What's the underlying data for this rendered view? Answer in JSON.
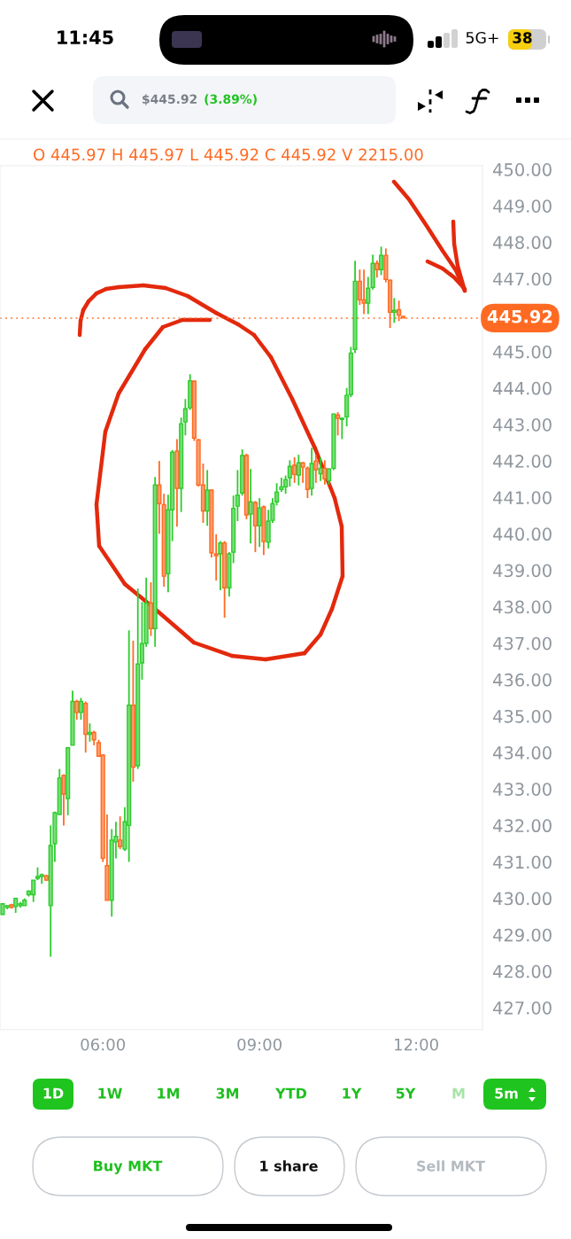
{
  "chart_data": {
    "type": "candlestick",
    "title": "$445.92",
    "subtitle": "O 445.97 H 445.97 L 445.92 C 445.92 V 2215.00",
    "x": [
      4.08,
      4.17,
      4.25,
      4.33,
      4.42,
      4.5,
      4.58,
      4.67,
      4.75,
      4.83,
      4.92,
      5.0,
      5.08,
      5.17,
      5.25,
      5.33,
      5.42,
      5.5,
      5.58,
      5.67,
      5.75,
      5.83,
      5.92,
      6.0,
      6.08,
      6.17,
      6.25,
      6.33,
      6.42,
      6.5,
      6.58,
      6.67,
      6.75,
      6.83,
      6.92,
      7.0,
      7.08,
      7.17,
      7.25,
      7.33,
      7.42,
      7.5,
      7.58,
      7.67,
      7.75,
      7.83,
      7.92,
      8.0,
      8.08,
      8.17,
      8.25,
      8.33,
      8.42,
      8.5,
      8.58,
      8.67,
      8.75,
      8.83,
      8.92,
      9.0,
      9.08,
      9.17,
      9.25,
      9.33,
      9.42,
      9.5,
      9.58,
      9.67,
      9.75,
      9.83,
      9.92,
      10.0,
      10.08,
      10.17,
      10.25,
      10.33,
      10.42,
      10.5,
      10.58,
      10.67,
      10.75,
      10.83,
      10.92,
      11.0,
      11.08,
      11.17,
      11.25,
      11.33,
      11.42,
      11.5,
      11.58,
      11.67,
      11.75
    ],
    "ohlc": [
      [
        429.56,
        429.87,
        429.55,
        429.85
      ],
      [
        429.75,
        429.82,
        429.7,
        429.8
      ],
      [
        429.82,
        429.85,
        429.72,
        429.75
      ],
      [
        429.78,
        430.02,
        429.6,
        430.0
      ],
      [
        429.8,
        429.9,
        429.75,
        429.85
      ],
      [
        429.8,
        430.0,
        429.8,
        429.95
      ],
      [
        430.1,
        430.22,
        430.05,
        430.2
      ],
      [
        430.1,
        430.5,
        429.9,
        430.5
      ],
      [
        430.55,
        430.85,
        430.5,
        430.6
      ],
      [
        430.6,
        430.68,
        430.4,
        430.65
      ],
      [
        430.62,
        430.65,
        430.48,
        430.5
      ],
      [
        429.8,
        432.0,
        428.4,
        431.45
      ],
      [
        431.5,
        432.38,
        431.0,
        432.35
      ],
      [
        432.3,
        433.55,
        432.3,
        433.3
      ],
      [
        433.37,
        433.4,
        432.0,
        432.86
      ],
      [
        432.74,
        434.15,
        432.28,
        434.13
      ],
      [
        434.2,
        435.7,
        434.2,
        435.4
      ],
      [
        435.4,
        435.45,
        434.9,
        435.1
      ],
      [
        435.1,
        435.5,
        434.9,
        435.4
      ],
      [
        435.35,
        435.4,
        434.0,
        434.5
      ],
      [
        434.5,
        434.8,
        434.3,
        434.55
      ],
      [
        434.55,
        434.6,
        434.2,
        434.35
      ],
      [
        434.27,
        434.35,
        433.88,
        433.9
      ],
      [
        433.93,
        433.95,
        431.0,
        431.1
      ],
      [
        430.9,
        432.3,
        429.95,
        429.95
      ],
      [
        429.95,
        431.9,
        429.5,
        431.6
      ],
      [
        431.55,
        432.1,
        431.1,
        431.7
      ],
      [
        431.6,
        432.25,
        431.35,
        431.42
      ],
      [
        431.35,
        432.5,
        431.3,
        432.1
      ],
      [
        432.0,
        437.35,
        431.0,
        435.3
      ],
      [
        435.3,
        437.07,
        433.2,
        433.6
      ],
      [
        433.64,
        438.5,
        433.55,
        436.43
      ],
      [
        436.46,
        438.13,
        436.0,
        436.99
      ],
      [
        437.0,
        438.8,
        436.9,
        438.1
      ],
      [
        438.1,
        438.67,
        437.2,
        437.4
      ],
      [
        437.4,
        441.56,
        436.9,
        441.34
      ],
      [
        441.34,
        442.0,
        440.0,
        440.83
      ],
      [
        440.8,
        441.1,
        438.55,
        438.84
      ],
      [
        438.91,
        441.07,
        438.4,
        440.66
      ],
      [
        440.66,
        442.3,
        439.8,
        442.24
      ],
      [
        442.27,
        442.6,
        440.2,
        441.25
      ],
      [
        441.25,
        443.19,
        440.6,
        443.02
      ],
      [
        443.07,
        443.7,
        442.7,
        443.43
      ],
      [
        443.46,
        444.38,
        443.4,
        444.2
      ],
      [
        444.19,
        444.2,
        442.55,
        442.63
      ],
      [
        442.58,
        442.6,
        441.3,
        441.34
      ],
      [
        441.34,
        441.93,
        440.3,
        440.63
      ],
      [
        440.63,
        441.75,
        440.22,
        441.2
      ],
      [
        441.2,
        441.22,
        439.35,
        439.48
      ],
      [
        439.45,
        439.99,
        438.72,
        439.4
      ],
      [
        439.45,
        439.8,
        438.45,
        439.75
      ],
      [
        439.75,
        439.8,
        437.7,
        438.52
      ],
      [
        438.52,
        439.5,
        438.28,
        439.45
      ],
      [
        439.5,
        441.05,
        439.2,
        440.7
      ],
      [
        440.76,
        441.75,
        440.35,
        441.06
      ],
      [
        441.12,
        442.32,
        441.05,
        442.15
      ],
      [
        442.15,
        442.2,
        440.4,
        440.52
      ],
      [
        440.54,
        441.78,
        439.74,
        440.88
      ],
      [
        440.86,
        440.9,
        439.5,
        440.22
      ],
      [
        440.22,
        440.98,
        439.64,
        440.71
      ],
      [
        440.74,
        440.78,
        439.42,
        439.79
      ],
      [
        439.77,
        440.66,
        439.6,
        440.35
      ],
      [
        440.37,
        440.98,
        440.3,
        440.83
      ],
      [
        440.88,
        441.39,
        440.78,
        441.15
      ],
      [
        441.22,
        441.54,
        441.15,
        441.29
      ],
      [
        441.29,
        441.6,
        441.1,
        441.49
      ],
      [
        441.54,
        442.02,
        441.3,
        441.85
      ],
      [
        441.88,
        442.1,
        441.4,
        441.63
      ],
      [
        441.61,
        442.17,
        441.33,
        441.95
      ],
      [
        441.95,
        441.97,
        441.4,
        441.83
      ],
      [
        441.8,
        441.85,
        440.98,
        441.22
      ],
      [
        441.25,
        442.36,
        441.05,
        441.93
      ],
      [
        442.0,
        442.17,
        441.4,
        441.76
      ],
      [
        441.65,
        442.1,
        441.45,
        441.8
      ],
      [
        441.8,
        442.02,
        441.35,
        441.51
      ],
      [
        441.46,
        441.8,
        441.35,
        441.78
      ],
      [
        441.8,
        443.3,
        441.75,
        443.29
      ],
      [
        443.26,
        443.34,
        442.7,
        443.17
      ],
      [
        443.14,
        443.2,
        442.6,
        443.17
      ],
      [
        443.21,
        444.0,
        442.95,
        443.8
      ],
      [
        443.82,
        445.13,
        443.75,
        444.96
      ],
      [
        445.06,
        447.49,
        444.96,
        446.93
      ],
      [
        446.93,
        447.25,
        446.28,
        446.42
      ],
      [
        446.42,
        447.25,
        446.03,
        446.33
      ],
      [
        446.33,
        447.05,
        446.03,
        446.74
      ],
      [
        446.76,
        447.66,
        446.7,
        447.42
      ],
      [
        447.42,
        447.5,
        447.03,
        447.25
      ],
      [
        447.25,
        447.88,
        447.1,
        447.64
      ],
      [
        447.64,
        447.83,
        446.9,
        446.98
      ],
      [
        446.96,
        446.98,
        445.65,
        446.08
      ],
      [
        446.08,
        446.47,
        445.79,
        446.13
      ],
      [
        446.15,
        446.4,
        445.84,
        446.0
      ],
      [
        445.97,
        445.97,
        445.92,
        445.92
      ]
    ],
    "colors": [
      "#2ecc2e",
      "#2ecc2e",
      "#ff6a22",
      "#2ecc2e",
      "#2ecc2e",
      "#2ecc2e",
      "#2ecc2e",
      "#2ecc2e",
      "#2ecc2e",
      "#2ecc2e",
      "#ff6a22",
      "#2ecc2e",
      "#2ecc2e",
      "#2ecc2e",
      "#ff6a22",
      "#2ecc2e",
      "#2ecc2e",
      "#ff6a22",
      "#2ecc2e",
      "#ff6a22",
      "#2ecc2e",
      "#ff6a22",
      "#ff6a22",
      "#ff6a22",
      "#ff6a22",
      "#2ecc2e",
      "#2ecc2e",
      "#ff6a22",
      "#2ecc2e",
      "#2ecc2e",
      "#ff6a22",
      "#2ecc2e",
      "#2ecc2e",
      "#2ecc2e",
      "#ff6a22",
      "#2ecc2e",
      "#ff6a22",
      "#ff6a22",
      "#2ecc2e",
      "#2ecc2e",
      "#ff6a22",
      "#2ecc2e",
      "#2ecc2e",
      "#2ecc2e",
      "#ff6a22",
      "#ff6a22",
      "#ff6a22",
      "#2ecc2e",
      "#ff6a22",
      "#ff6a22",
      "#2ecc2e",
      "#ff6a22",
      "#2ecc2e",
      "#2ecc2e",
      "#2ecc2e",
      "#2ecc2e",
      "#ff6a22",
      "#2ecc2e",
      "#ff6a22",
      "#2ecc2e",
      "#ff6a22",
      "#2ecc2e",
      "#2ecc2e",
      "#2ecc2e",
      "#2ecc2e",
      "#2ecc2e",
      "#2ecc2e",
      "#ff6a22",
      "#2ecc2e",
      "#ff6a22",
      "#ff6a22",
      "#2ecc2e",
      "#ff6a22",
      "#2ecc2e",
      "#ff6a22",
      "#2ecc2e",
      "#2ecc2e",
      "#ff6a22",
      "#2ecc2e",
      "#2ecc2e",
      "#2ecc2e",
      "#2ecc2e",
      "#ff6a22",
      "#ff6a22",
      "#2ecc2e",
      "#2ecc2e",
      "#ff6a22",
      "#2ecc2e",
      "#ff6a22",
      "#ff6a22",
      "#2ecc2e",
      "#ff6a22",
      "#ff6a22"
    ],
    "xlim": [
      4.03,
      13.27
    ],
    "xticks": [
      {
        "value": 6,
        "label": "06:00"
      },
      {
        "value": 9,
        "label": "09:00"
      },
      {
        "value": 12,
        "label": "12:00"
      }
    ],
    "ylim": [
      426.4,
      450.1
    ],
    "yticks": [
      {
        "value": 427,
        "label": "427.00"
      },
      {
        "value": 428,
        "label": "428.00"
      },
      {
        "value": 429,
        "label": "429.00"
      },
      {
        "value": 430,
        "label": "430.00"
      },
      {
        "value": 431,
        "label": "431.00"
      },
      {
        "value": 432,
        "label": "432.00"
      },
      {
        "value": 433,
        "label": "433.00"
      },
      {
        "value": 434,
        "label": "434.00"
      },
      {
        "value": 435,
        "label": "435.00"
      },
      {
        "value": 436,
        "label": "436.00"
      },
      {
        "value": 437,
        "label": "437.00"
      },
      {
        "value": 438,
        "label": "438.00"
      },
      {
        "value": 439,
        "label": "439.00"
      },
      {
        "value": 440,
        "label": "440.00"
      },
      {
        "value": 441,
        "label": "441.00"
      },
      {
        "value": 442,
        "label": "442.00"
      },
      {
        "value": 443,
        "label": "443.00"
      },
      {
        "value": 444,
        "label": "444.00"
      },
      {
        "value": 445,
        "label": "445.00"
      },
      {
        "value": 447,
        "label": "447.00"
      },
      {
        "value": 448,
        "label": "448.00"
      },
      {
        "value": 449,
        "label": "449.00"
      },
      {
        "value": 450,
        "label": "450.00"
      }
    ],
    "ref_lines": [
      {
        "axis": "y",
        "value": 445.92,
        "label": "445.92",
        "color": "#ff6a22",
        "line_style": "dotted"
      }
    ],
    "annotations": [
      "(3.89%)",
      "11:45",
      "5G+",
      "38",
      "1D",
      "1W",
      "1M",
      "3M",
      "YTD",
      "1Y",
      "5Y",
      "M",
      "5m",
      "Buy MKT",
      "1 share",
      "Sell MKT"
    ]
  }
}
